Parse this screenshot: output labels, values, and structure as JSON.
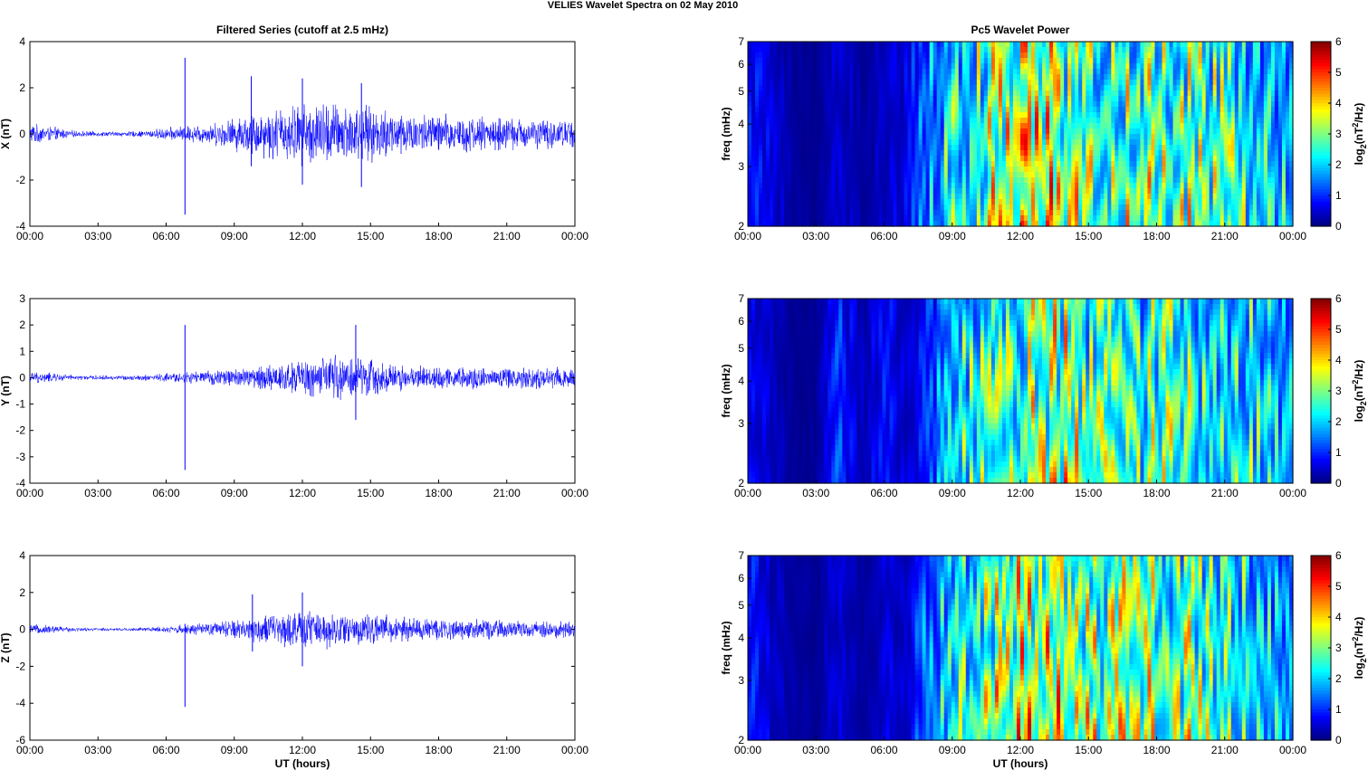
{
  "figure": {
    "title": "VELIES Wavelet Spectra on 02 May      2010"
  },
  "colors": {
    "series_line": "#0000ff",
    "axis": "#000000",
    "jet_stops": [
      "#00007f",
      "#0000ff",
      "#00ffff",
      "#ffff00",
      "#ff0000",
      "#7f0000"
    ]
  },
  "chart_data": [
    {
      "type": "line",
      "title": "Filtered Series (cutoff at 2.5 mHz)",
      "ylabel": "X (nT)",
      "xlabel": "",
      "xlim": [
        0,
        24
      ],
      "ylim": [
        -4,
        4
      ],
      "x_ticks": [
        "00:00",
        "03:00",
        "06:00",
        "09:00",
        "12:00",
        "15:00",
        "18:00",
        "21:00",
        "00:00"
      ],
      "y_ticks": [
        4,
        2,
        0,
        -2,
        -4
      ],
      "series": [
        {
          "envelope_hourly_nT": [
            0.5,
            0.35,
            0.15,
            0.12,
            0.12,
            0.15,
            0.3,
            0.4,
            0.5,
            0.8,
            1.1,
            1.3,
            1.5,
            1.6,
            1.5,
            1.3,
            1.2,
            1.0,
            1.0,
            0.9,
            0.85,
            0.8,
            0.75,
            0.7
          ],
          "spikes": [
            {
              "x": 6.83,
              "min": -3.5,
              "max": 3.3
            },
            {
              "x": 9.75,
              "min": -1.4,
              "max": 2.5
            },
            {
              "x": 12.0,
              "min": -2.2,
              "max": 2.4
            },
            {
              "x": 14.6,
              "min": -2.3,
              "max": 2.2
            }
          ]
        }
      ]
    },
    {
      "type": "line",
      "title": "",
      "ylabel": "Y (nT)",
      "xlabel": "",
      "xlim": [
        0,
        24
      ],
      "ylim": [
        -4,
        3
      ],
      "x_ticks": [
        "00:00",
        "03:00",
        "06:00",
        "09:00",
        "12:00",
        "15:00",
        "18:00",
        "21:00",
        "00:00"
      ],
      "y_ticks": [
        3,
        2,
        1,
        0,
        -1,
        -2,
        -3,
        -4
      ],
      "series": [
        {
          "envelope_hourly_nT": [
            0.25,
            0.2,
            0.1,
            0.1,
            0.1,
            0.12,
            0.2,
            0.25,
            0.3,
            0.4,
            0.5,
            0.6,
            0.8,
            0.9,
            1.0,
            0.8,
            0.6,
            0.5,
            0.5,
            0.5,
            0.45,
            0.45,
            0.5,
            0.5
          ],
          "spikes": [
            {
              "x": 6.83,
              "min": -3.5,
              "max": 2.0
            },
            {
              "x": 14.35,
              "min": -1.6,
              "max": 2.0
            }
          ]
        }
      ]
    },
    {
      "type": "line",
      "title": "",
      "ylabel": "Z (nT)",
      "xlabel": "UT (hours)",
      "xlim": [
        0,
        24
      ],
      "ylim": [
        -6,
        4
      ],
      "x_ticks": [
        "00:00",
        "03:00",
        "06:00",
        "09:00",
        "12:00",
        "15:00",
        "18:00",
        "21:00",
        "00:00"
      ],
      "y_ticks": [
        4,
        2,
        0,
        -2,
        -4,
        -6
      ],
      "series": [
        {
          "envelope_hourly_nT": [
            0.3,
            0.25,
            0.12,
            0.1,
            0.1,
            0.12,
            0.2,
            0.3,
            0.4,
            0.6,
            0.8,
            1.0,
            1.2,
            1.1,
            1.0,
            0.9,
            0.8,
            0.7,
            0.7,
            0.6,
            0.6,
            0.5,
            0.5,
            0.5
          ],
          "spikes": [
            {
              "x": 6.83,
              "min": -4.2,
              "max": 0.3
            },
            {
              "x": 9.8,
              "min": -1.2,
              "max": 1.9
            },
            {
              "x": 12.0,
              "min": -2.0,
              "max": 2.0
            }
          ]
        }
      ]
    },
    {
      "type": "heatmap",
      "title": "Pc5 Wavelet Power",
      "ylabel": "freq (mHz)",
      "xlabel": "",
      "xlim": [
        0,
        24
      ],
      "ylim": [
        2,
        7
      ],
      "y_scale": "log",
      "x_ticks": [
        "00:00",
        "03:00",
        "06:00",
        "09:00",
        "12:00",
        "15:00",
        "18:00",
        "21:00",
        "00:00"
      ],
      "y_ticks": [
        7,
        6,
        5,
        4,
        3,
        2
      ],
      "colorbar": {
        "label": "log2(nT2/Hz)",
        "range": [
          0,
          6
        ],
        "ticks": [
          6,
          5,
          4,
          3,
          2,
          1,
          0
        ]
      },
      "activity_hourly_log2": [
        1.5,
        0.8,
        0.3,
        0.2,
        0.8,
        0.3,
        0.6,
        0.9,
        2.5,
        3.5,
        4.0,
        4.8,
        5.2,
        5.2,
        5.0,
        4.8,
        4.5,
        4.5,
        4.6,
        4.5,
        4.4,
        4.0,
        3.6,
        3.0
      ]
    },
    {
      "type": "heatmap",
      "title": "",
      "ylabel": "freq (mHz)",
      "xlabel": "",
      "xlim": [
        0,
        24
      ],
      "ylim": [
        2,
        7
      ],
      "y_scale": "log",
      "x_ticks": [
        "00:00",
        "03:00",
        "06:00",
        "09:00",
        "12:00",
        "15:00",
        "18:00",
        "21:00",
        "00:00"
      ],
      "y_ticks": [
        7,
        6,
        5,
        4,
        3,
        2
      ],
      "colorbar": {
        "label": "log2(nT2/Hz)",
        "range": [
          0,
          6
        ],
        "ticks": [
          6,
          5,
          4,
          3,
          2,
          1,
          0
        ]
      },
      "activity_hourly_log2": [
        1.2,
        0.6,
        0.2,
        0.2,
        1.5,
        0.5,
        1.2,
        0.6,
        1.5,
        3.2,
        3.8,
        4.0,
        4.3,
        4.8,
        5.0,
        4.0,
        3.8,
        3.5,
        4.2,
        4.0,
        3.8,
        3.5,
        3.6,
        3.0
      ]
    },
    {
      "type": "heatmap",
      "title": "",
      "ylabel": "freq (mHz)",
      "xlabel": "UT (hours)",
      "xlim": [
        0,
        24
      ],
      "ylim": [
        2,
        7
      ],
      "y_scale": "log",
      "x_ticks": [
        "00:00",
        "03:00",
        "06:00",
        "09:00",
        "12:00",
        "15:00",
        "18:00",
        "21:00",
        "00:00"
      ],
      "y_ticks": [
        7,
        6,
        5,
        4,
        3,
        2
      ],
      "colorbar": {
        "label": "log2(nT2/Hz)",
        "range": [
          0,
          6
        ],
        "ticks": [
          6,
          5,
          4,
          3,
          2,
          1,
          0
        ]
      },
      "activity_hourly_log2": [
        1.4,
        0.7,
        0.3,
        0.2,
        0.8,
        0.3,
        0.7,
        0.9,
        2.3,
        3.4,
        4.0,
        4.8,
        5.1,
        5.2,
        5.0,
        4.8,
        4.5,
        4.6,
        4.5,
        4.5,
        4.4,
        4.0,
        3.6,
        3.0
      ]
    }
  ]
}
